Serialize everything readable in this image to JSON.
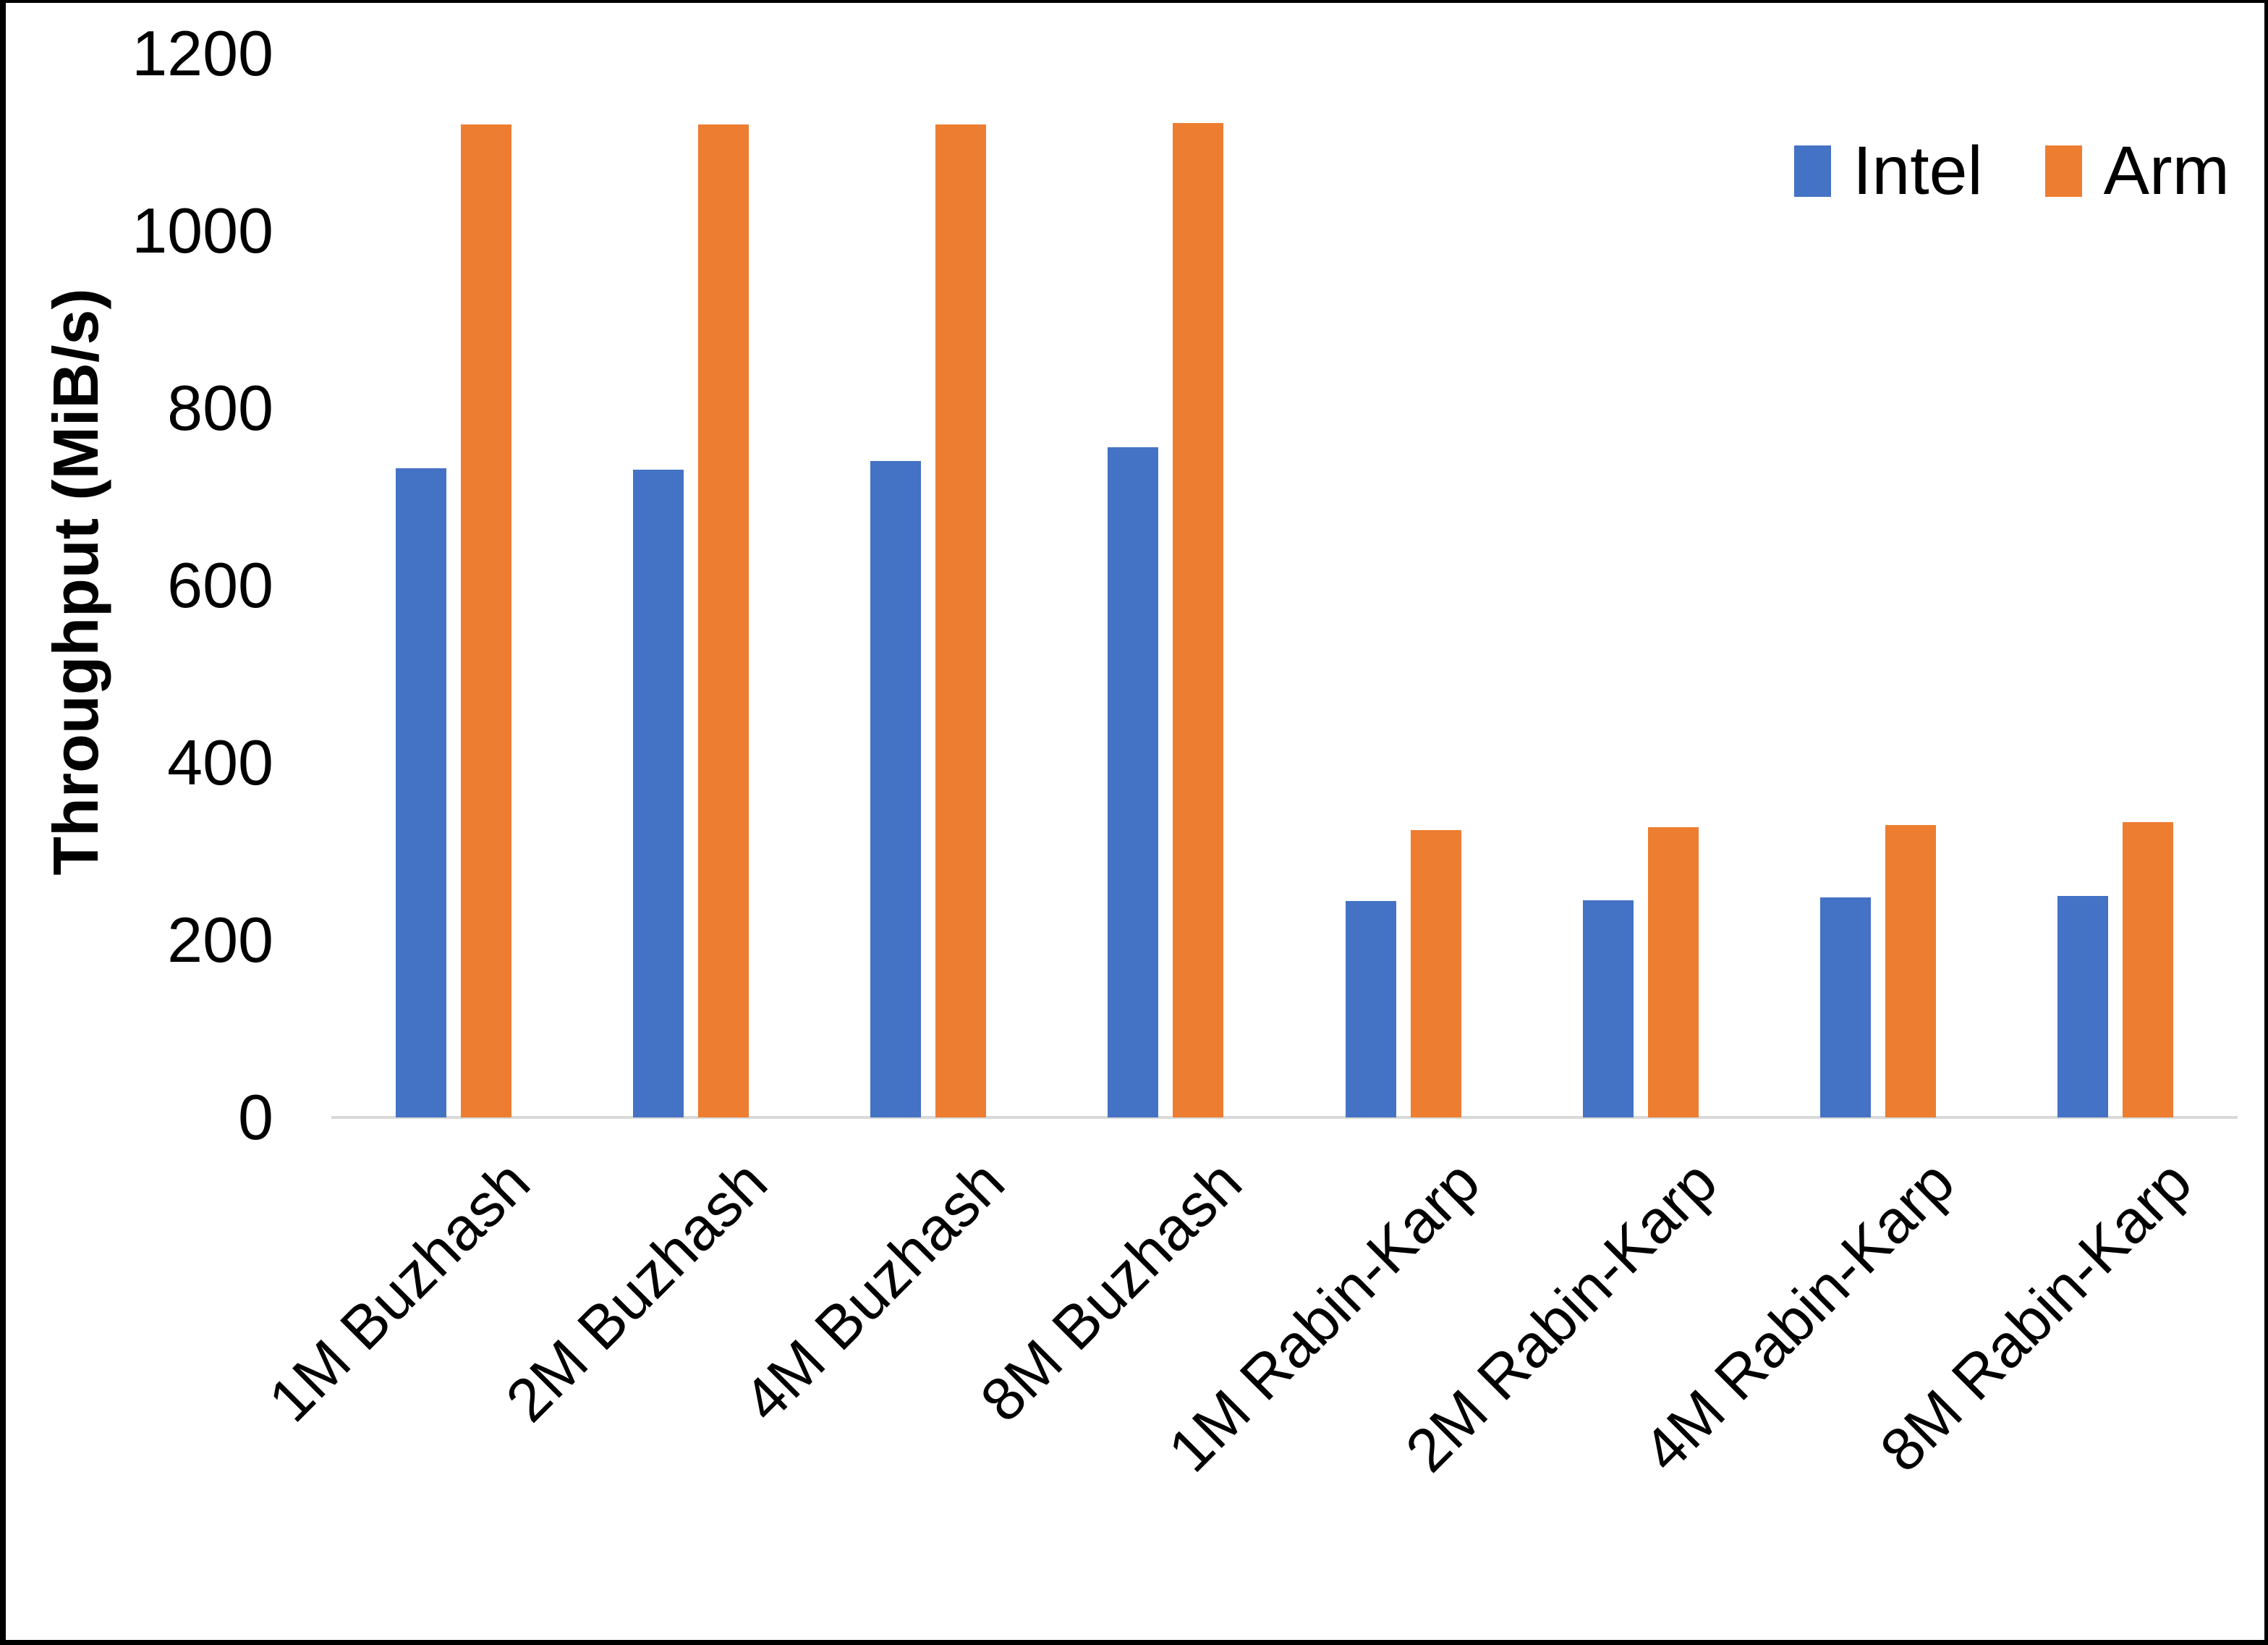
{
  "chart_data": {
    "type": "bar",
    "title": "",
    "xlabel": "",
    "ylabel": "Throughput (MiB/s)",
    "ylim": [
      0,
      1200
    ],
    "yticks": [
      0,
      200,
      400,
      600,
      800,
      1000,
      1200
    ],
    "grid": false,
    "legend_position": "top-right",
    "background_color": "#ffffff",
    "axis_line_color": "#d9d9d9",
    "text_color": "#000000",
    "categories": [
      "1M Buzhash",
      "2M Buzhash",
      "4M Buzhash",
      "8M Buzhash",
      "1M Rabin-Karp",
      "2M Rabin-Karp",
      "4M Rabin-Karp",
      "8M Rabin-Karp"
    ],
    "series": [
      {
        "name": "Intel",
        "color": "#4472C4",
        "values": [
          732,
          731,
          740,
          756,
          244,
          245,
          248,
          250
        ]
      },
      {
        "name": "Arm",
        "color": "#ED7D31",
        "values": [
          1120,
          1120,
          1120,
          1122,
          324,
          327,
          330,
          333
        ]
      }
    ]
  }
}
